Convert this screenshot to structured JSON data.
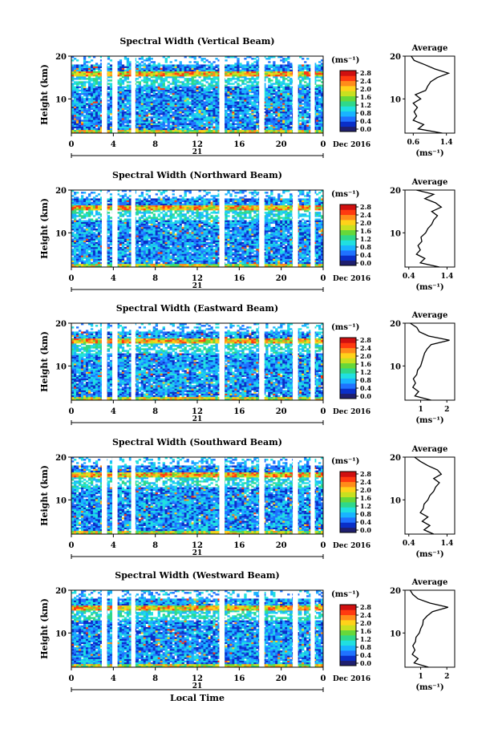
{
  "figure": {
    "xlabel": "Local Time",
    "date_label": "Dec 2016",
    "day_label": "21",
    "cbar_unit": "(ms⁻¹)",
    "avg_unit": "(ms⁻¹)",
    "avg_title": "Average",
    "ylabel": "Height (km)",
    "colors": [
      "#1f1f6f",
      "#0a2fc8",
      "#1f72ff",
      "#19b4ff",
      "#20e0e0",
      "#2fd88a",
      "#66d83a",
      "#c8e020",
      "#ffd21a",
      "#ff8c1a",
      "#ff3a10",
      "#d01010"
    ]
  },
  "chart_data": [
    {
      "type": "heatmap",
      "title": "Spectral Width (Vertical Beam)",
      "xlabel": "",
      "ylabel": "Height (km)",
      "xlim": [
        0,
        24
      ],
      "ylim": [
        2,
        20
      ],
      "xticks": [
        "0",
        "4",
        "8",
        "12",
        "16",
        "20",
        "0"
      ],
      "yticks": [
        "10",
        "20"
      ],
      "colorbar": {
        "label": "(ms⁻¹)",
        "ticks": [
          "0.0",
          "0.4",
          "0.8",
          "1.2",
          "1.6",
          "2.0",
          "2.4",
          "2.8"
        ]
      },
      "data_gaps_hours": [
        [
          2.9,
          3.4
        ],
        [
          3.9,
          4.4
        ],
        [
          5.7,
          6.1
        ],
        [
          14.1,
          14.6
        ],
        [
          17.9,
          18.4
        ],
        [
          21.1,
          21.6
        ],
        [
          22.8,
          23.2
        ]
      ],
      "average": {
        "title": "Average",
        "xticks": [
          "0.6",
          "1.4"
        ],
        "xlim": [
          0.4,
          1.6
        ],
        "height": [
          2,
          3,
          4,
          5,
          6,
          7,
          8,
          9,
          10,
          11,
          12,
          13,
          14,
          15,
          16,
          17,
          18,
          19,
          20
        ],
        "value": [
          1.3,
          0.72,
          0.85,
          0.6,
          0.68,
          0.62,
          0.7,
          0.6,
          0.78,
          0.65,
          0.9,
          0.95,
          1.02,
          1.18,
          1.45,
          1.12,
          0.88,
          0.62,
          0.55
        ]
      }
    },
    {
      "type": "heatmap",
      "title": "Spectral Width (Northward Beam)",
      "xlabel": "",
      "ylabel": "Height (km)",
      "xlim": [
        0,
        24
      ],
      "ylim": [
        2,
        20
      ],
      "xticks": [
        "0",
        "4",
        "8",
        "12",
        "16",
        "20",
        "0"
      ],
      "yticks": [
        "10",
        "20"
      ],
      "colorbar": {
        "label": "(ms⁻¹)",
        "ticks": [
          "0.0",
          "0.4",
          "0.8",
          "1.2",
          "1.6",
          "2.0",
          "2.4",
          "2.8"
        ]
      },
      "data_gaps_hours": [
        [
          2.9,
          3.4
        ],
        [
          3.9,
          4.4
        ],
        [
          5.7,
          6.1
        ],
        [
          14.1,
          14.6
        ],
        [
          17.9,
          18.4
        ],
        [
          21.1,
          21.6
        ],
        [
          22.8,
          23.2
        ]
      ],
      "average": {
        "title": "Average",
        "xticks": [
          "0.4",
          "1.4"
        ],
        "xlim": [
          0.3,
          1.6
        ],
        "height": [
          2,
          3,
          4,
          5,
          6,
          7,
          8,
          9,
          10,
          11,
          12,
          13,
          14,
          15,
          16,
          17,
          18,
          19,
          20
        ],
        "value": [
          1.2,
          0.7,
          0.82,
          0.6,
          0.7,
          0.64,
          0.74,
          0.72,
          0.84,
          0.9,
          1.0,
          1.05,
          1.15,
          1.0,
          1.25,
          1.1,
          0.82,
          1.05,
          0.6
        ]
      }
    },
    {
      "type": "heatmap",
      "title": "Spectral Width (Eastward Beam)",
      "xlabel": "",
      "ylabel": "Height (km)",
      "xlim": [
        0,
        24
      ],
      "ylim": [
        2,
        20
      ],
      "xticks": [
        "0",
        "4",
        "8",
        "12",
        "16",
        "20",
        "0"
      ],
      "yticks": [
        "10",
        "20"
      ],
      "colorbar": {
        "label": "(ms⁻¹)",
        "ticks": [
          "0.0",
          "0.4",
          "0.8",
          "1.2",
          "1.6",
          "2.0",
          "2.4",
          "2.8"
        ]
      },
      "data_gaps_hours": [
        [
          2.9,
          3.4
        ],
        [
          3.9,
          4.4
        ],
        [
          5.7,
          6.1
        ],
        [
          14.1,
          14.6
        ],
        [
          17.9,
          18.4
        ],
        [
          21.1,
          21.6
        ],
        [
          22.8,
          23.2
        ]
      ],
      "average": {
        "title": "Average",
        "xticks": [
          "1",
          "2"
        ],
        "xlim": [
          0.4,
          2.3
        ],
        "height": [
          2,
          3,
          4,
          5,
          6,
          7,
          8,
          9,
          10,
          11,
          12,
          13,
          14,
          15,
          16,
          17,
          18,
          19,
          20
        ],
        "value": [
          1.4,
          0.78,
          0.92,
          0.7,
          0.8,
          0.72,
          0.85,
          0.88,
          1.0,
          1.05,
          1.1,
          1.15,
          1.25,
          1.4,
          2.1,
          1.3,
          0.95,
          0.85,
          0.6
        ]
      }
    },
    {
      "type": "heatmap",
      "title": "Spectral Width (Southward Beam)",
      "xlabel": "",
      "ylabel": "Height (km)",
      "xlim": [
        0,
        24
      ],
      "ylim": [
        2,
        20
      ],
      "xticks": [
        "0",
        "4",
        "8",
        "12",
        "16",
        "20",
        "0"
      ],
      "yticks": [
        "10",
        "20"
      ],
      "colorbar": {
        "label": "(ms⁻¹)",
        "ticks": [
          "0.0",
          "0.4",
          "0.8",
          "1.2",
          "1.6",
          "2.0",
          "2.4",
          "2.8"
        ]
      },
      "data_gaps_hours": [
        [
          2.9,
          3.4
        ],
        [
          3.9,
          4.4
        ],
        [
          5.7,
          6.1
        ],
        [
          14.1,
          14.6
        ],
        [
          17.9,
          18.4
        ],
        [
          21.1,
          21.6
        ],
        [
          22.8,
          23.2
        ]
      ],
      "average": {
        "title": "Average",
        "xticks": [
          "0.4",
          "1.4"
        ],
        "xlim": [
          0.3,
          1.6
        ],
        "height": [
          2,
          3,
          4,
          5,
          6,
          7,
          8,
          9,
          10,
          11,
          12,
          13,
          14,
          15,
          16,
          17,
          18,
          19,
          20
        ],
        "value": [
          1.05,
          0.8,
          0.95,
          0.75,
          0.9,
          0.7,
          0.78,
          0.8,
          0.9,
          0.95,
          1.05,
          1.1,
          1.2,
          1.05,
          1.25,
          1.15,
          0.9,
          0.7,
          0.55
        ]
      }
    },
    {
      "type": "heatmap",
      "title": "Spectral Width (Westward Beam)",
      "xlabel": "Local Time",
      "ylabel": "Height (km)",
      "xlim": [
        0,
        24
      ],
      "ylim": [
        2,
        20
      ],
      "xticks": [
        "0",
        "4",
        "8",
        "12",
        "16",
        "20",
        "0"
      ],
      "yticks": [
        "10",
        "20"
      ],
      "colorbar": {
        "label": "(ms⁻¹)",
        "ticks": [
          "0.0",
          "0.4",
          "0.8",
          "1.2",
          "1.6",
          "2.0",
          "2.4",
          "2.8"
        ]
      },
      "data_gaps_hours": [
        [
          2.9,
          3.4
        ],
        [
          3.9,
          4.4
        ],
        [
          5.7,
          6.1
        ],
        [
          14.1,
          14.6
        ],
        [
          17.9,
          18.4
        ],
        [
          21.1,
          21.6
        ],
        [
          22.8,
          23.2
        ]
      ],
      "average": {
        "title": "Average",
        "xticks": [
          "1",
          "2"
        ],
        "xlim": [
          0.4,
          2.3
        ],
        "height": [
          2,
          3,
          4,
          5,
          6,
          7,
          8,
          9,
          10,
          11,
          12,
          13,
          14,
          15,
          16,
          17,
          18,
          19,
          20
        ],
        "value": [
          1.3,
          0.75,
          0.9,
          0.68,
          0.78,
          0.7,
          0.8,
          0.82,
          0.95,
          1.0,
          1.08,
          1.1,
          1.25,
          1.45,
          2.05,
          1.35,
          0.9,
          0.7,
          0.6
        ]
      }
    }
  ]
}
